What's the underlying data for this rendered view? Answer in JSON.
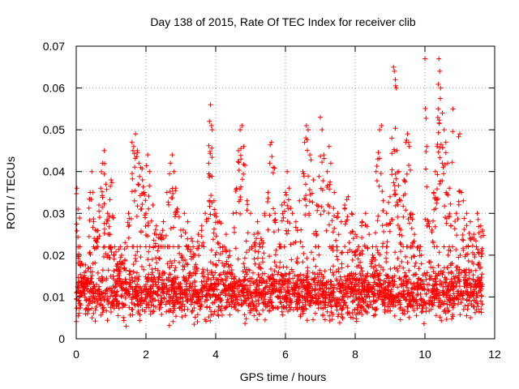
{
  "chart_data": {
    "type": "scatter",
    "title": "Day 138 of 2015, Rate Of TEC Index for receiver clib",
    "xlabel": "GPS time / hours",
    "ylabel": "ROTI / TECUs",
    "xlim": [
      0,
      12
    ],
    "ylim": [
      0,
      0.07
    ],
    "x_ticks": [
      0,
      2,
      4,
      6,
      8,
      10,
      12
    ],
    "x_tick_labels": [
      "0",
      "2",
      "4",
      "6",
      "8",
      "10",
      "12"
    ],
    "y_ticks": [
      0,
      0.01,
      0.02,
      0.03,
      0.04,
      0.05,
      0.06,
      0.07
    ],
    "y_tick_labels": [
      "0",
      "0.01",
      "0.02",
      "0.03",
      "0.04",
      "0.05",
      "0.06",
      "0.07"
    ],
    "grid": true,
    "marker": "+",
    "color": "#ff0000",
    "series": [
      {
        "name": "ROTI",
        "points": [
          [
            0.02,
            0.036
          ],
          [
            0.05,
            0.031
          ],
          [
            0.1,
            0.022
          ],
          [
            0.15,
            0.018
          ],
          [
            0.2,
            0.013
          ],
          [
            0.3,
            0.012
          ],
          [
            0.4,
            0.035
          ],
          [
            0.45,
            0.04
          ],
          [
            0.5,
            0.028
          ],
          [
            0.55,
            0.026
          ],
          [
            0.6,
            0.024
          ],
          [
            0.65,
            0.032
          ],
          [
            0.7,
            0.036
          ],
          [
            0.75,
            0.042
          ],
          [
            0.8,
            0.045
          ],
          [
            0.85,
            0.037
          ],
          [
            0.9,
            0.03
          ],
          [
            0.95,
            0.025
          ],
          [
            1.0,
            0.038
          ],
          [
            1.05,
            0.029
          ],
          [
            1.1,
            0.022
          ],
          [
            1.2,
            0.018
          ],
          [
            1.3,
            0.02
          ],
          [
            1.4,
            0.023
          ],
          [
            1.5,
            0.03
          ],
          [
            1.6,
            0.047
          ],
          [
            1.65,
            0.046
          ],
          [
            1.7,
            0.049
          ],
          [
            1.75,
            0.045
          ],
          [
            1.8,
            0.042
          ],
          [
            1.85,
            0.041
          ],
          [
            1.9,
            0.038
          ],
          [
            1.95,
            0.035
          ],
          [
            2.0,
            0.03
          ],
          [
            2.05,
            0.044
          ],
          [
            2.1,
            0.04
          ],
          [
            2.2,
            0.032
          ],
          [
            2.3,
            0.027
          ],
          [
            2.4,
            0.025
          ],
          [
            2.5,
            0.028
          ],
          [
            2.6,
            0.035
          ],
          [
            2.7,
            0.042
          ],
          [
            2.75,
            0.044
          ],
          [
            2.8,
            0.04
          ],
          [
            2.85,
            0.036
          ],
          [
            2.9,
            0.031
          ],
          [
            3.0,
            0.026
          ],
          [
            3.1,
            0.03
          ],
          [
            3.2,
            0.028
          ],
          [
            3.3,
            0.024
          ],
          [
            3.4,
            0.02
          ],
          [
            3.5,
            0.025
          ],
          [
            3.6,
            0.027
          ],
          [
            3.7,
            0.03
          ],
          [
            3.8,
            0.042
          ],
          [
            3.82,
            0.052
          ],
          [
            3.85,
            0.056
          ],
          [
            3.88,
            0.051
          ],
          [
            3.9,
            0.05
          ],
          [
            3.95,
            0.033
          ],
          [
            4.0,
            0.03
          ],
          [
            4.1,
            0.028
          ],
          [
            4.2,
            0.022
          ],
          [
            4.3,
            0.025
          ],
          [
            4.4,
            0.021
          ],
          [
            4.5,
            0.03
          ],
          [
            4.6,
            0.036
          ],
          [
            4.65,
            0.045
          ],
          [
            4.7,
            0.05
          ],
          [
            4.75,
            0.051
          ],
          [
            4.8,
            0.046
          ],
          [
            4.9,
            0.033
          ],
          [
            5.0,
            0.03
          ],
          [
            5.1,
            0.025
          ],
          [
            5.2,
            0.028
          ],
          [
            5.3,
            0.024
          ],
          [
            5.4,
            0.03
          ],
          [
            5.5,
            0.035
          ],
          [
            5.55,
            0.042
          ],
          [
            5.6,
            0.047
          ],
          [
            5.65,
            0.041
          ],
          [
            5.7,
            0.03
          ],
          [
            5.8,
            0.026
          ],
          [
            5.9,
            0.032
          ],
          [
            6.0,
            0.035
          ],
          [
            6.05,
            0.04
          ],
          [
            6.1,
            0.036
          ],
          [
            6.2,
            0.03
          ],
          [
            6.3,
            0.028
          ],
          [
            6.4,
            0.033
          ],
          [
            6.5,
            0.04
          ],
          [
            6.55,
            0.047
          ],
          [
            6.6,
            0.051
          ],
          [
            6.65,
            0.05
          ],
          [
            6.7,
            0.044
          ],
          [
            6.8,
            0.038
          ],
          [
            6.9,
            0.032
          ],
          [
            7.0,
            0.053
          ],
          [
            7.05,
            0.05
          ],
          [
            7.1,
            0.044
          ],
          [
            7.2,
            0.04
          ],
          [
            7.25,
            0.046
          ],
          [
            7.3,
            0.042
          ],
          [
            7.4,
            0.035
          ],
          [
            7.5,
            0.03
          ],
          [
            7.6,
            0.028
          ],
          [
            7.7,
            0.032
          ],
          [
            7.8,
            0.034
          ],
          [
            7.9,
            0.03
          ],
          [
            8.0,
            0.025
          ],
          [
            8.1,
            0.022
          ],
          [
            8.2,
            0.028
          ],
          [
            8.3,
            0.03
          ],
          [
            8.4,
            0.025
          ],
          [
            8.5,
            0.02
          ],
          [
            8.6,
            0.04
          ],
          [
            8.65,
            0.043
          ],
          [
            8.7,
            0.05
          ],
          [
            8.75,
            0.051
          ],
          [
            8.8,
            0.033
          ],
          [
            8.9,
            0.03
          ],
          [
            9.0,
            0.034
          ],
          [
            9.05,
            0.048
          ],
          [
            9.1,
            0.065
          ],
          [
            9.12,
            0.064
          ],
          [
            9.15,
            0.062
          ],
          [
            9.18,
            0.06
          ],
          [
            9.2,
            0.045
          ],
          [
            9.25,
            0.04
          ],
          [
            9.3,
            0.033
          ],
          [
            9.4,
            0.038
          ],
          [
            9.45,
            0.047
          ],
          [
            9.5,
            0.049
          ],
          [
            9.55,
            0.046
          ],
          [
            9.6,
            0.03
          ],
          [
            9.7,
            0.025
          ],
          [
            9.8,
            0.022
          ],
          [
            9.9,
            0.02
          ],
          [
            10.0,
            0.067
          ],
          [
            10.05,
            0.046
          ],
          [
            10.1,
            0.028
          ],
          [
            10.2,
            0.026
          ],
          [
            10.25,
            0.035
          ],
          [
            10.3,
            0.04
          ],
          [
            10.35,
            0.046
          ],
          [
            10.38,
            0.055
          ],
          [
            10.4,
            0.067
          ],
          [
            10.42,
            0.064
          ],
          [
            10.45,
            0.06
          ],
          [
            10.5,
            0.054
          ],
          [
            10.55,
            0.05
          ],
          [
            10.6,
            0.047
          ],
          [
            10.65,
            0.042
          ],
          [
            10.7,
            0.036
          ],
          [
            10.8,
            0.055
          ],
          [
            10.9,
            0.03
          ],
          [
            11.0,
            0.049
          ],
          [
            11.05,
            0.035
          ],
          [
            11.1,
            0.033
          ],
          [
            11.2,
            0.03
          ],
          [
            11.3,
            0.028
          ],
          [
            11.4,
            0.025
          ],
          [
            11.5,
            0.03
          ],
          [
            11.6,
            0.027
          ],
          [
            11.65,
            0.026
          ]
        ],
        "dense_band": {
          "x_range": [
            0,
            11.65
          ],
          "y_center": 0.011,
          "y_spread": 0.006,
          "y_min": 0.003,
          "y_max": 0.022
        }
      }
    ]
  }
}
